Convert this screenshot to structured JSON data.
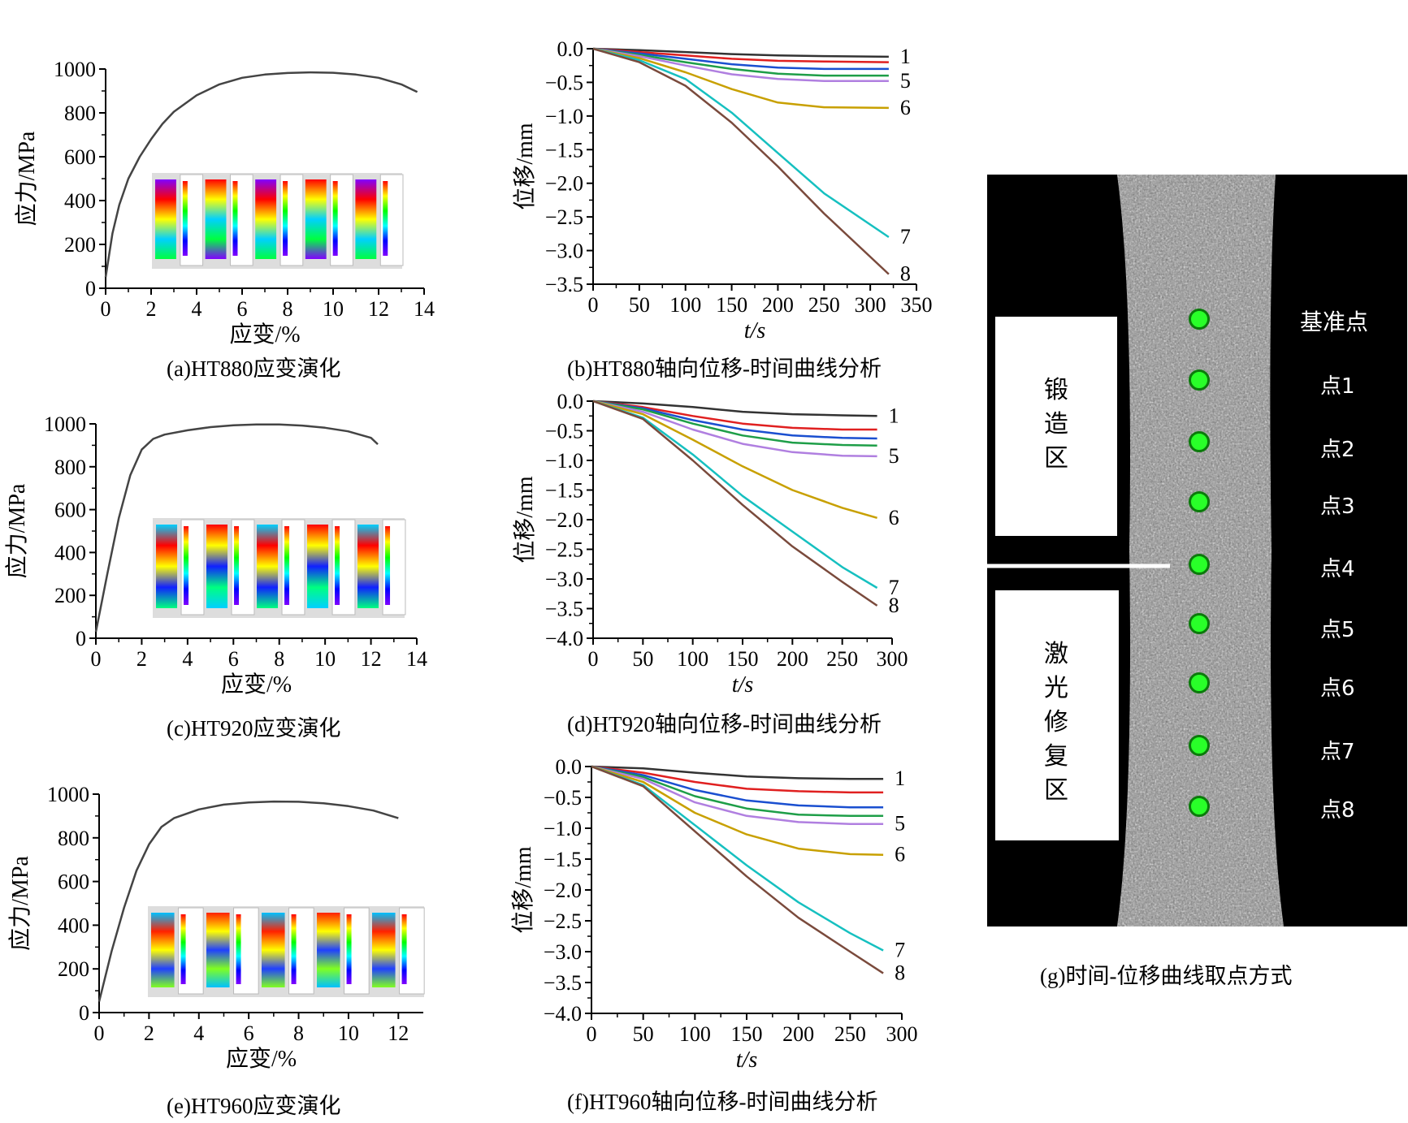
{
  "charts": {
    "a": {
      "caption": "(a)HT880应变演化",
      "xlabel": "应变/%",
      "ylabel": "应力/MPa"
    },
    "b": {
      "caption": "(b)HT880轴向位移-时间曲线分析",
      "xlabel": "t/s",
      "ylabel": "位移/mm"
    },
    "c": {
      "caption": "(c)HT920应变演化",
      "xlabel": "应变/%",
      "ylabel": "应力/MPa"
    },
    "d": {
      "caption": "(d)HT920轴向位移-时间曲线分析",
      "xlabel": "t/s",
      "ylabel": "位移/mm"
    },
    "e": {
      "caption": "(e)HT960应变演化",
      "xlabel": "应变/%",
      "ylabel": "应力/MPa"
    },
    "f": {
      "caption": "(f)HT960轴向位移-时间曲线分析",
      "xlabel": "t/s",
      "ylabel": "位移/mm"
    }
  },
  "panel_g": {
    "caption": "(g)时间-位移曲线取点方式",
    "forged_label": "锻造区",
    "laser_label": "激光修复区",
    "reference_label": "基准点",
    "points": [
      "点1",
      "点2",
      "点3",
      "点4",
      "点5",
      "点6",
      "点7",
      "点8"
    ]
  },
  "colors": {
    "series": [
      "#333333",
      "#e02020",
      "#1a4fd0",
      "#1e9e48",
      "#b07fe0",
      "#c8a000",
      "#16c0c0",
      "#7a4a3c"
    ],
    "stress_curve": "#444444"
  },
  "chart_data": [
    {
      "type": "line",
      "id": "a",
      "xlim": [
        0,
        14
      ],
      "ylim": [
        0,
        1000
      ],
      "xticks": [
        0,
        2,
        4,
        6,
        8,
        10,
        12,
        14
      ],
      "yticks": [
        0,
        200,
        400,
        600,
        800,
        1000
      ],
      "series": [
        {
          "x": [
            0,
            0.3,
            0.6,
            1,
            1.5,
            2,
            2.5,
            3,
            4,
            5,
            6,
            7,
            8,
            9,
            10,
            11,
            12,
            13,
            13.7
          ],
          "y": [
            50,
            250,
            380,
            500,
            600,
            680,
            750,
            805,
            880,
            930,
            960,
            975,
            982,
            985,
            983,
            975,
            960,
            930,
            895
          ]
        }
      ],
      "inset_maps": 5
    },
    {
      "type": "line",
      "id": "b",
      "xlim": [
        0,
        350
      ],
      "ylim": [
        -3.5,
        0
      ],
      "xticks": [
        0,
        50,
        100,
        150,
        200,
        250,
        300,
        350
      ],
      "yticks": [
        0.0,
        -0.5,
        -1.0,
        -1.5,
        -2.0,
        -2.5,
        -3.0,
        -3.5
      ],
      "end_labels": [
        "1",
        "5",
        "6",
        "7",
        "8"
      ],
      "series": [
        {
          "x": [
            0,
            50,
            100,
            150,
            200,
            250,
            320
          ],
          "y": [
            0,
            -0.02,
            -0.05,
            -0.08,
            -0.1,
            -0.11,
            -0.12
          ]
        },
        {
          "x": [
            0,
            50,
            100,
            150,
            200,
            250,
            320
          ],
          "y": [
            0,
            -0.05,
            -0.1,
            -0.15,
            -0.18,
            -0.19,
            -0.2
          ]
        },
        {
          "x": [
            0,
            50,
            100,
            150,
            200,
            250,
            320
          ],
          "y": [
            0,
            -0.07,
            -0.15,
            -0.23,
            -0.28,
            -0.3,
            -0.3
          ]
        },
        {
          "x": [
            0,
            50,
            100,
            150,
            200,
            250,
            320
          ],
          "y": [
            0,
            -0.09,
            -0.2,
            -0.3,
            -0.37,
            -0.4,
            -0.4
          ]
        },
        {
          "x": [
            0,
            50,
            100,
            150,
            200,
            250,
            320
          ],
          "y": [
            0,
            -0.11,
            -0.25,
            -0.38,
            -0.45,
            -0.48,
            -0.48
          ]
        },
        {
          "x": [
            0,
            50,
            100,
            150,
            200,
            250,
            320
          ],
          "y": [
            0,
            -0.14,
            -0.35,
            -0.6,
            -0.8,
            -0.87,
            -0.88
          ]
        },
        {
          "x": [
            0,
            50,
            100,
            150,
            200,
            250,
            320
          ],
          "y": [
            0,
            -0.17,
            -0.45,
            -0.95,
            -1.55,
            -2.15,
            -2.8
          ]
        },
        {
          "x": [
            0,
            50,
            100,
            150,
            200,
            250,
            320
          ],
          "y": [
            0,
            -0.2,
            -0.55,
            -1.1,
            -1.75,
            -2.45,
            -3.35
          ]
        }
      ]
    },
    {
      "type": "line",
      "id": "c",
      "xlim": [
        0,
        14
      ],
      "ylim": [
        0,
        1000
      ],
      "xticks": [
        0,
        2,
        4,
        6,
        8,
        10,
        12,
        14
      ],
      "yticks": [
        0,
        200,
        400,
        600,
        800,
        1000
      ],
      "series": [
        {
          "x": [
            0,
            0.5,
            1,
            1.5,
            2,
            2.5,
            3,
            4,
            5,
            6,
            7,
            8,
            9,
            10,
            11,
            12,
            12.3
          ],
          "y": [
            30,
            300,
            560,
            760,
            880,
            930,
            950,
            970,
            985,
            993,
            997,
            997,
            992,
            982,
            965,
            935,
            905
          ]
        }
      ],
      "inset_maps": 5
    },
    {
      "type": "line",
      "id": "d",
      "xlim": [
        0,
        300
      ],
      "ylim": [
        -4.0,
        0
      ],
      "xticks": [
        0,
        50,
        100,
        150,
        200,
        250,
        300
      ],
      "yticks": [
        0.0,
        -0.5,
        -1.0,
        -1.5,
        -2.0,
        -2.5,
        -3.0,
        -3.5,
        -4.0
      ],
      "end_labels": [
        "1",
        "5",
        "6",
        "7",
        "8"
      ],
      "series": [
        {
          "x": [
            0,
            50,
            100,
            150,
            200,
            250,
            285
          ],
          "y": [
            0,
            -0.04,
            -0.1,
            -0.18,
            -0.22,
            -0.24,
            -0.25
          ]
        },
        {
          "x": [
            0,
            50,
            100,
            150,
            200,
            250,
            285
          ],
          "y": [
            0,
            -0.1,
            -0.25,
            -0.38,
            -0.45,
            -0.48,
            -0.48
          ]
        },
        {
          "x": [
            0,
            50,
            100,
            150,
            200,
            250,
            285
          ],
          "y": [
            0,
            -0.12,
            -0.32,
            -0.48,
            -0.58,
            -0.62,
            -0.63
          ]
        },
        {
          "x": [
            0,
            50,
            100,
            150,
            200,
            250,
            285
          ],
          "y": [
            0,
            -0.14,
            -0.38,
            -0.58,
            -0.7,
            -0.74,
            -0.75
          ]
        },
        {
          "x": [
            0,
            50,
            100,
            150,
            200,
            250,
            285
          ],
          "y": [
            0,
            -0.18,
            -0.48,
            -0.72,
            -0.86,
            -0.92,
            -0.93
          ]
        },
        {
          "x": [
            0,
            50,
            100,
            150,
            200,
            250,
            285
          ],
          "y": [
            0,
            -0.22,
            -0.65,
            -1.1,
            -1.5,
            -1.8,
            -1.97
          ]
        },
        {
          "x": [
            0,
            50,
            100,
            150,
            200,
            250,
            285
          ],
          "y": [
            0,
            -0.28,
            -0.9,
            -1.6,
            -2.2,
            -2.8,
            -3.15
          ]
        },
        {
          "x": [
            0,
            50,
            100,
            150,
            200,
            250,
            285
          ],
          "y": [
            0,
            -0.3,
            -1.0,
            -1.75,
            -2.45,
            -3.05,
            -3.45
          ]
        }
      ]
    },
    {
      "type": "line",
      "id": "e",
      "xlim": [
        0,
        13
      ],
      "ylim": [
        0,
        1000
      ],
      "xticks": [
        0,
        2,
        4,
        6,
        8,
        10,
        12
      ],
      "yticks": [
        0,
        200,
        400,
        600,
        800,
        1000
      ],
      "series": [
        {
          "x": [
            0,
            0.5,
            1,
            1.5,
            2,
            2.5,
            3,
            4,
            5,
            6,
            7,
            8,
            9,
            10,
            11,
            12
          ],
          "y": [
            50,
            280,
            480,
            650,
            770,
            850,
            890,
            930,
            952,
            962,
            966,
            965,
            958,
            945,
            925,
            890
          ]
        }
      ],
      "inset_maps": 5
    },
    {
      "type": "line",
      "id": "f",
      "xlim": [
        0,
        300
      ],
      "ylim": [
        -4.0,
        0
      ],
      "xticks": [
        0,
        50,
        100,
        150,
        200,
        250,
        300
      ],
      "yticks": [
        0.0,
        -0.5,
        -1.0,
        -1.5,
        -2.0,
        -2.5,
        -3.0,
        -3.5,
        -4.0
      ],
      "end_labels": [
        "1",
        "5",
        "6",
        "7",
        "8"
      ],
      "series": [
        {
          "x": [
            0,
            50,
            100,
            150,
            200,
            250,
            282
          ],
          "y": [
            0,
            -0.03,
            -0.1,
            -0.16,
            -0.19,
            -0.2,
            -0.2
          ]
        },
        {
          "x": [
            0,
            50,
            100,
            150,
            200,
            250,
            282
          ],
          "y": [
            0,
            -0.1,
            -0.25,
            -0.36,
            -0.4,
            -0.42,
            -0.42
          ]
        },
        {
          "x": [
            0,
            50,
            100,
            150,
            200,
            250,
            282
          ],
          "y": [
            0,
            -0.14,
            -0.38,
            -0.55,
            -0.63,
            -0.66,
            -0.66
          ]
        },
        {
          "x": [
            0,
            50,
            100,
            150,
            200,
            250,
            282
          ],
          "y": [
            0,
            -0.17,
            -0.48,
            -0.68,
            -0.78,
            -0.8,
            -0.8
          ]
        },
        {
          "x": [
            0,
            50,
            100,
            150,
            200,
            250,
            282
          ],
          "y": [
            0,
            -0.2,
            -0.58,
            -0.8,
            -0.9,
            -0.93,
            -0.93
          ]
        },
        {
          "x": [
            0,
            50,
            100,
            150,
            200,
            250,
            282
          ],
          "y": [
            0,
            -0.25,
            -0.75,
            -1.1,
            -1.33,
            -1.42,
            -1.43
          ]
        },
        {
          "x": [
            0,
            50,
            100,
            150,
            200,
            250,
            282
          ],
          "y": [
            0,
            -0.3,
            -0.95,
            -1.6,
            -2.2,
            -2.7,
            -2.98
          ]
        },
        {
          "x": [
            0,
            50,
            100,
            150,
            200,
            250,
            282
          ],
          "y": [
            0,
            -0.32,
            -1.05,
            -1.78,
            -2.45,
            -3.0,
            -3.35
          ]
        }
      ]
    }
  ]
}
